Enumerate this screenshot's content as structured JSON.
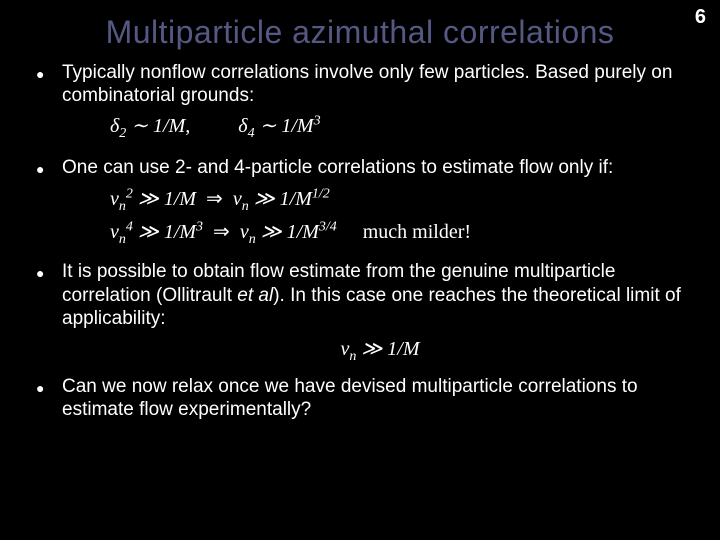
{
  "page_number": "6",
  "title": "Multiparticle azimuthal correlations",
  "colors": {
    "background": "#000000",
    "title_color": "#565884",
    "text_color": "#ffffff"
  },
  "bullets": {
    "b1": "Typically nonflow correlations involve only few particles. Based purely on combinatorial grounds:",
    "b2": "One can use 2- and 4-particle correlations to estimate flow only if:",
    "b3_a": "It is possible to obtain flow estimate from the genuine multiparticle correlation (Ollitrault ",
    "b3_b": "et al",
    "b3_c": "). In this case one reaches the theoretical limit of applicability:",
    "b4": "Can we now relax once we have devised multiparticle correlations to estimate flow experimentally?"
  },
  "formulas": {
    "f1_a": "δ",
    "f1_b": " ∼ 1/M,",
    "f1_c": "δ",
    "f1_d": " ∼ 1/M",
    "f2l1_a": "v",
    "f2l1_b": " ≫ 1/M",
    "f2l1_c": "v",
    "f2l1_d": " ≫ 1/M",
    "f2l2_a": "v",
    "f2l2_b": " ≫ 1/M",
    "f2l2_c": "v",
    "f2l2_d": " ≫ 1/M",
    "milder": "much milder!",
    "arrow": "⇒",
    "f3_a": "v",
    "f3_b": " ≫ 1/M"
  }
}
